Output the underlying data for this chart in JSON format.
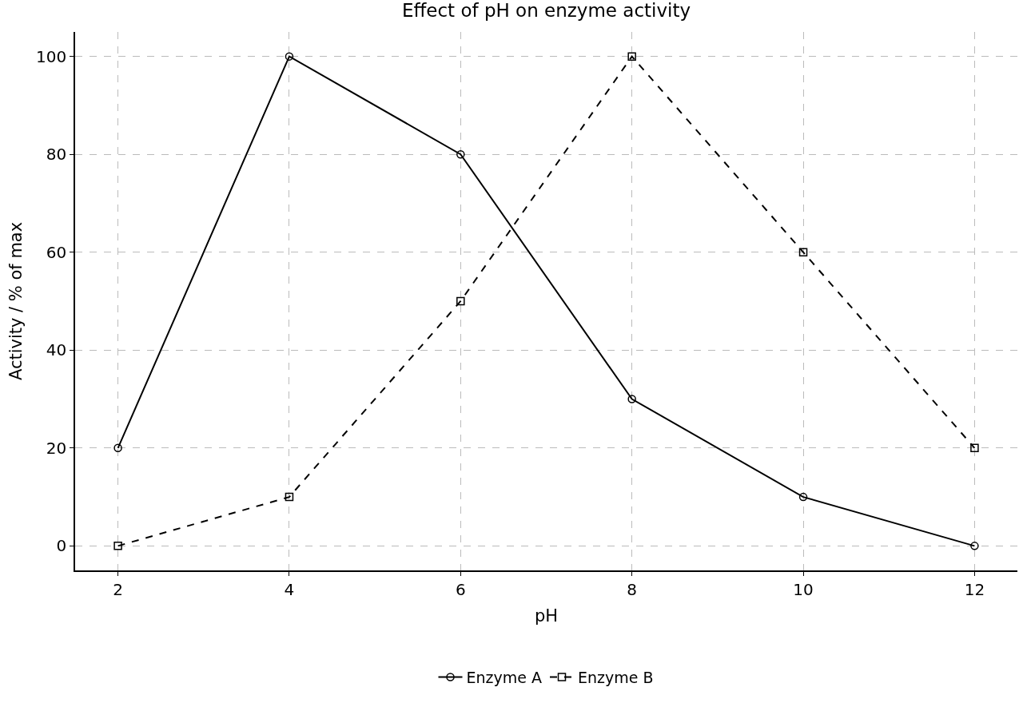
{
  "chart_data": {
    "type": "line",
    "title": "Effect of pH on enzyme activity",
    "xlabel": "pH",
    "ylabel": "Activity / % of max",
    "x": [
      2,
      4,
      6,
      8,
      10,
      12
    ],
    "series": [
      {
        "name": "Enzyme A",
        "color": "#000000",
        "values": [
          20,
          100,
          80,
          30,
          10,
          0
        ],
        "marker": "circle",
        "line_style": "solid"
      },
      {
        "name": "Enzyme B",
        "color": "#000000",
        "values": [
          0,
          10,
          50,
          100,
          60,
          20
        ],
        "marker": "square",
        "line_style": "dashed"
      }
    ],
    "xlim": [
      1.5,
      12.5
    ],
    "xticks": [
      2,
      4,
      6,
      8,
      10,
      12
    ],
    "ylim": [
      -5,
      105
    ],
    "yticks": [
      0,
      20,
      40,
      60,
      80,
      100
    ],
    "grid": true,
    "legend": "bottom"
  }
}
